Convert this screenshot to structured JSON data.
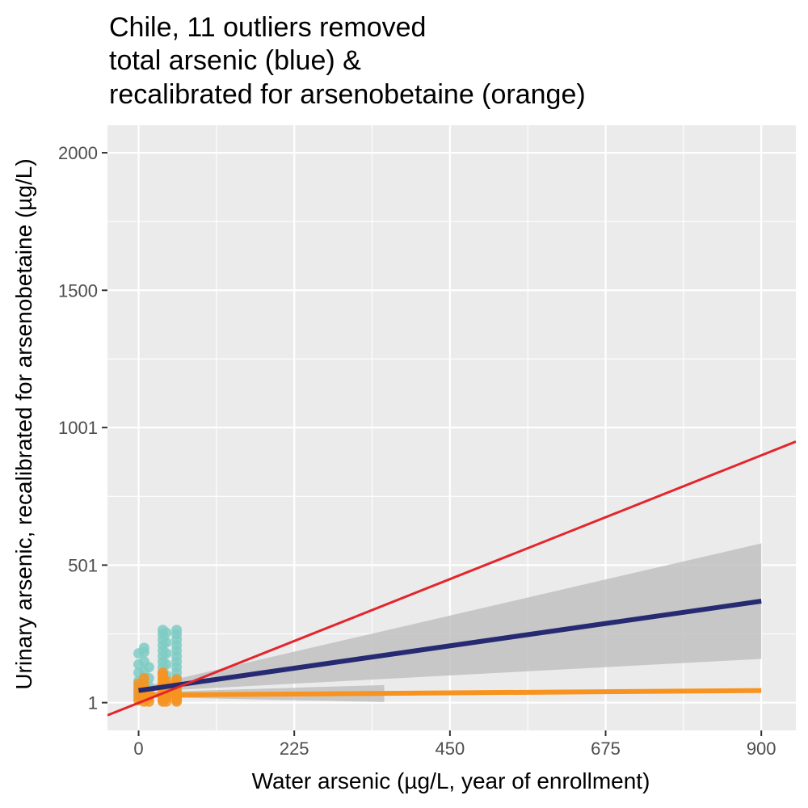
{
  "chart_data": {
    "type": "scatter",
    "title_lines": [
      "Chile, 11 outliers removed",
      "total arsenic (blue) &",
      "recalibrated for arsenobetaine (orange)"
    ],
    "xlabel": "Water arsenic (µg/L, year of enrollment)",
    "ylabel": "Urinary arsenic, recalibrated for arsenobetaine (µg/L)",
    "xlim": [
      -45,
      950
    ],
    "ylim": [
      -100,
      2100
    ],
    "x_ticks": [
      {
        "value": 0,
        "label": "0"
      },
      {
        "value": 225,
        "label": "225"
      },
      {
        "value": 450,
        "label": "450"
      },
      {
        "value": 675,
        "label": "675"
      },
      {
        "value": 900,
        "label": "900"
      }
    ],
    "y_ticks": [
      {
        "value": 1,
        "label": "1"
      },
      {
        "value": 501,
        "label": "501"
      },
      {
        "value": 1001,
        "label": "1001"
      },
      {
        "value": 1500,
        "label": "1500"
      },
      {
        "value": 2000,
        "label": "2000"
      }
    ],
    "grid": true,
    "colors": {
      "panel": "#ebebeb",
      "grid": "#ffffff",
      "total_points": "#7fcdc4",
      "recalibrated_points": "#f7931e",
      "total_line": "#262a72",
      "recalibrated_line": "#f7931e",
      "identity_line": "#e3262b",
      "ribbon": "#bebebe"
    },
    "series": [
      {
        "kind": "points",
        "role": "total",
        "points": [
          [
            0,
            20
          ],
          [
            0,
            40
          ],
          [
            0,
            60
          ],
          [
            0,
            80
          ],
          [
            0,
            110
          ],
          [
            0,
            140
          ],
          [
            0,
            180
          ],
          [
            8,
            15
          ],
          [
            8,
            35
          ],
          [
            8,
            55
          ],
          [
            8,
            85
          ],
          [
            8,
            115
          ],
          [
            8,
            150
          ],
          [
            8,
            185
          ],
          [
            8,
            200
          ],
          [
            15,
            25
          ],
          [
            15,
            60
          ],
          [
            15,
            90
          ],
          [
            15,
            130
          ],
          [
            35,
            10
          ],
          [
            35,
            30
          ],
          [
            35,
            50
          ],
          [
            35,
            70
          ],
          [
            35,
            90
          ],
          [
            35,
            110
          ],
          [
            35,
            130
          ],
          [
            35,
            150
          ],
          [
            35,
            170
          ],
          [
            35,
            190
          ],
          [
            35,
            210
          ],
          [
            35,
            230
          ],
          [
            35,
            250
          ],
          [
            35,
            265
          ],
          [
            40,
            20
          ],
          [
            40,
            60
          ],
          [
            40,
            100
          ],
          [
            40,
            140
          ],
          [
            40,
            180
          ],
          [
            40,
            220
          ],
          [
            40,
            255
          ],
          [
            55,
            10
          ],
          [
            55,
            30
          ],
          [
            55,
            50
          ],
          [
            55,
            70
          ],
          [
            55,
            90
          ],
          [
            55,
            110
          ],
          [
            55,
            130
          ],
          [
            55,
            150
          ],
          [
            55,
            170
          ],
          [
            55,
            190
          ],
          [
            55,
            210
          ],
          [
            55,
            230
          ],
          [
            55,
            250
          ],
          [
            55,
            265
          ]
        ]
      },
      {
        "kind": "points",
        "role": "recalibrated",
        "points": [
          [
            0,
            10
          ],
          [
            0,
            30
          ],
          [
            0,
            50
          ],
          [
            0,
            70
          ],
          [
            8,
            5
          ],
          [
            8,
            25
          ],
          [
            8,
            45
          ],
          [
            8,
            65
          ],
          [
            8,
            90
          ],
          [
            15,
            5
          ],
          [
            15,
            20
          ],
          [
            15,
            40
          ],
          [
            35,
            5
          ],
          [
            35,
            15
          ],
          [
            35,
            25
          ],
          [
            35,
            40
          ],
          [
            35,
            55
          ],
          [
            35,
            70
          ],
          [
            35,
            85
          ],
          [
            35,
            100
          ],
          [
            35,
            110
          ],
          [
            40,
            5
          ],
          [
            40,
            20
          ],
          [
            40,
            35
          ],
          [
            40,
            50
          ],
          [
            40,
            65
          ],
          [
            40,
            80
          ],
          [
            55,
            5
          ],
          [
            55,
            15
          ],
          [
            55,
            25
          ],
          [
            55,
            40
          ],
          [
            55,
            55
          ],
          [
            55,
            70
          ],
          [
            55,
            85
          ]
        ]
      },
      {
        "kind": "band",
        "role": "total",
        "x": [
          0,
          900
        ],
        "lower": [
          40,
          160
        ],
        "upper": [
          55,
          580
        ]
      },
      {
        "kind": "band",
        "role": "recalibrated",
        "x": [
          0,
          355
        ],
        "lower": [
          22,
          3
        ],
        "upper": [
          38,
          65
        ]
      },
      {
        "kind": "fit",
        "role": "total",
        "x": [
          0,
          900
        ],
        "y": [
          45,
          370
        ]
      },
      {
        "kind": "fit",
        "role": "recalibrated",
        "x": [
          0,
          900
        ],
        "y": [
          28,
          45
        ]
      },
      {
        "kind": "identity",
        "role": "reference",
        "x": [
          -45,
          950
        ],
        "y": [
          -45,
          950
        ]
      }
    ]
  }
}
